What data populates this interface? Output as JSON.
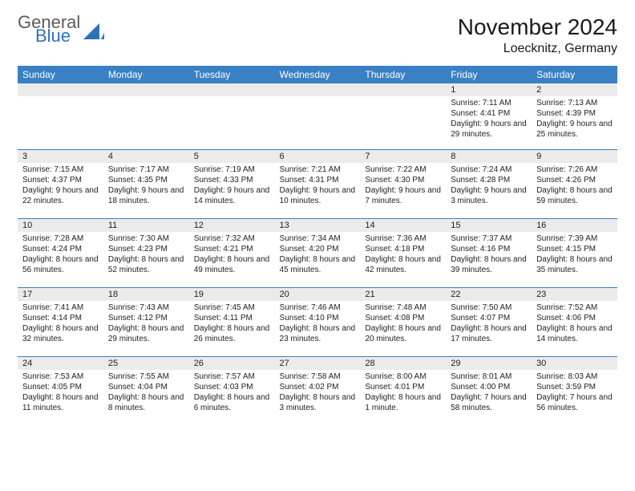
{
  "brand": {
    "general": "General",
    "blue": "Blue",
    "accent": "#2f71b8",
    "grey": "#5b5b5b"
  },
  "title": "November 2024",
  "location": "Loecknitz, Germany",
  "colors": {
    "header_bg": "#3a80c4",
    "header_text": "#ffffff",
    "daynum_bg": "#ebebeb",
    "cell_border": "#3a80c4",
    "body_text": "#222222",
    "page_bg": "#ffffff"
  },
  "fonts": {
    "title_size": 28,
    "location_size": 16,
    "weekday_size": 12,
    "daynum_size": 11,
    "body_size": 10
  },
  "weekdays": [
    "Sunday",
    "Monday",
    "Tuesday",
    "Wednesday",
    "Thursday",
    "Friday",
    "Saturday"
  ],
  "weeks": [
    [
      {
        "n": "",
        "sunrise": "",
        "sunset": "",
        "daylight": ""
      },
      {
        "n": "",
        "sunrise": "",
        "sunset": "",
        "daylight": ""
      },
      {
        "n": "",
        "sunrise": "",
        "sunset": "",
        "daylight": ""
      },
      {
        "n": "",
        "sunrise": "",
        "sunset": "",
        "daylight": ""
      },
      {
        "n": "",
        "sunrise": "",
        "sunset": "",
        "daylight": ""
      },
      {
        "n": "1",
        "sunrise": "Sunrise: 7:11 AM",
        "sunset": "Sunset: 4:41 PM",
        "daylight": "Daylight: 9 hours and 29 minutes."
      },
      {
        "n": "2",
        "sunrise": "Sunrise: 7:13 AM",
        "sunset": "Sunset: 4:39 PM",
        "daylight": "Daylight: 9 hours and 25 minutes."
      }
    ],
    [
      {
        "n": "3",
        "sunrise": "Sunrise: 7:15 AM",
        "sunset": "Sunset: 4:37 PM",
        "daylight": "Daylight: 9 hours and 22 minutes."
      },
      {
        "n": "4",
        "sunrise": "Sunrise: 7:17 AM",
        "sunset": "Sunset: 4:35 PM",
        "daylight": "Daylight: 9 hours and 18 minutes."
      },
      {
        "n": "5",
        "sunrise": "Sunrise: 7:19 AM",
        "sunset": "Sunset: 4:33 PM",
        "daylight": "Daylight: 9 hours and 14 minutes."
      },
      {
        "n": "6",
        "sunrise": "Sunrise: 7:21 AM",
        "sunset": "Sunset: 4:31 PM",
        "daylight": "Daylight: 9 hours and 10 minutes."
      },
      {
        "n": "7",
        "sunrise": "Sunrise: 7:22 AM",
        "sunset": "Sunset: 4:30 PM",
        "daylight": "Daylight: 9 hours and 7 minutes."
      },
      {
        "n": "8",
        "sunrise": "Sunrise: 7:24 AM",
        "sunset": "Sunset: 4:28 PM",
        "daylight": "Daylight: 9 hours and 3 minutes."
      },
      {
        "n": "9",
        "sunrise": "Sunrise: 7:26 AM",
        "sunset": "Sunset: 4:26 PM",
        "daylight": "Daylight: 8 hours and 59 minutes."
      }
    ],
    [
      {
        "n": "10",
        "sunrise": "Sunrise: 7:28 AM",
        "sunset": "Sunset: 4:24 PM",
        "daylight": "Daylight: 8 hours and 56 minutes."
      },
      {
        "n": "11",
        "sunrise": "Sunrise: 7:30 AM",
        "sunset": "Sunset: 4:23 PM",
        "daylight": "Daylight: 8 hours and 52 minutes."
      },
      {
        "n": "12",
        "sunrise": "Sunrise: 7:32 AM",
        "sunset": "Sunset: 4:21 PM",
        "daylight": "Daylight: 8 hours and 49 minutes."
      },
      {
        "n": "13",
        "sunrise": "Sunrise: 7:34 AM",
        "sunset": "Sunset: 4:20 PM",
        "daylight": "Daylight: 8 hours and 45 minutes."
      },
      {
        "n": "14",
        "sunrise": "Sunrise: 7:36 AM",
        "sunset": "Sunset: 4:18 PM",
        "daylight": "Daylight: 8 hours and 42 minutes."
      },
      {
        "n": "15",
        "sunrise": "Sunrise: 7:37 AM",
        "sunset": "Sunset: 4:16 PM",
        "daylight": "Daylight: 8 hours and 39 minutes."
      },
      {
        "n": "16",
        "sunrise": "Sunrise: 7:39 AM",
        "sunset": "Sunset: 4:15 PM",
        "daylight": "Daylight: 8 hours and 35 minutes."
      }
    ],
    [
      {
        "n": "17",
        "sunrise": "Sunrise: 7:41 AM",
        "sunset": "Sunset: 4:14 PM",
        "daylight": "Daylight: 8 hours and 32 minutes."
      },
      {
        "n": "18",
        "sunrise": "Sunrise: 7:43 AM",
        "sunset": "Sunset: 4:12 PM",
        "daylight": "Daylight: 8 hours and 29 minutes."
      },
      {
        "n": "19",
        "sunrise": "Sunrise: 7:45 AM",
        "sunset": "Sunset: 4:11 PM",
        "daylight": "Daylight: 8 hours and 26 minutes."
      },
      {
        "n": "20",
        "sunrise": "Sunrise: 7:46 AM",
        "sunset": "Sunset: 4:10 PM",
        "daylight": "Daylight: 8 hours and 23 minutes."
      },
      {
        "n": "21",
        "sunrise": "Sunrise: 7:48 AM",
        "sunset": "Sunset: 4:08 PM",
        "daylight": "Daylight: 8 hours and 20 minutes."
      },
      {
        "n": "22",
        "sunrise": "Sunrise: 7:50 AM",
        "sunset": "Sunset: 4:07 PM",
        "daylight": "Daylight: 8 hours and 17 minutes."
      },
      {
        "n": "23",
        "sunrise": "Sunrise: 7:52 AM",
        "sunset": "Sunset: 4:06 PM",
        "daylight": "Daylight: 8 hours and 14 minutes."
      }
    ],
    [
      {
        "n": "24",
        "sunrise": "Sunrise: 7:53 AM",
        "sunset": "Sunset: 4:05 PM",
        "daylight": "Daylight: 8 hours and 11 minutes."
      },
      {
        "n": "25",
        "sunrise": "Sunrise: 7:55 AM",
        "sunset": "Sunset: 4:04 PM",
        "daylight": "Daylight: 8 hours and 8 minutes."
      },
      {
        "n": "26",
        "sunrise": "Sunrise: 7:57 AM",
        "sunset": "Sunset: 4:03 PM",
        "daylight": "Daylight: 8 hours and 6 minutes."
      },
      {
        "n": "27",
        "sunrise": "Sunrise: 7:58 AM",
        "sunset": "Sunset: 4:02 PM",
        "daylight": "Daylight: 8 hours and 3 minutes."
      },
      {
        "n": "28",
        "sunrise": "Sunrise: 8:00 AM",
        "sunset": "Sunset: 4:01 PM",
        "daylight": "Daylight: 8 hours and 1 minute."
      },
      {
        "n": "29",
        "sunrise": "Sunrise: 8:01 AM",
        "sunset": "Sunset: 4:00 PM",
        "daylight": "Daylight: 7 hours and 58 minutes."
      },
      {
        "n": "30",
        "sunrise": "Sunrise: 8:03 AM",
        "sunset": "Sunset: 3:59 PM",
        "daylight": "Daylight: 7 hours and 56 minutes."
      }
    ]
  ]
}
